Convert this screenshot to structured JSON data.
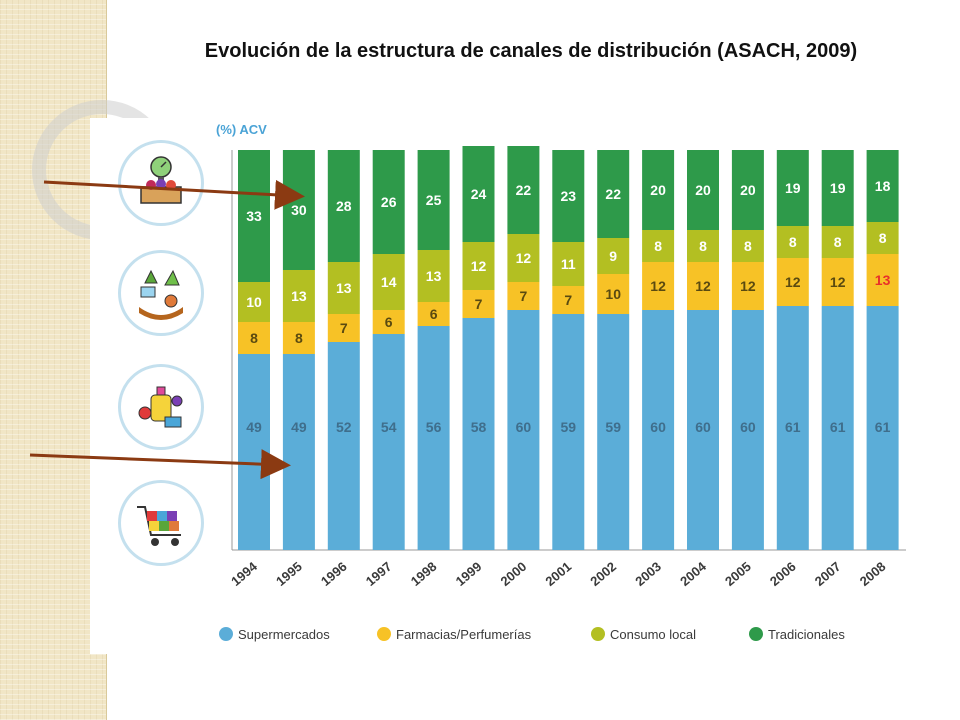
{
  "title": "Evolución de la estructura de canales de distribución (ASACH, 2009)",
  "icons": [
    "scale-market-icon",
    "grocer-icon",
    "perfume-icon",
    "shopping-cart-icon"
  ],
  "chart_data": {
    "type": "bar",
    "stacked": true,
    "unit_label": "(%) ACV",
    "categories": [
      "1994",
      "1995",
      "1996",
      "1997",
      "1998",
      "1999",
      "2000",
      "2001",
      "2002",
      "2003",
      "2004",
      "2005",
      "2006",
      "2007",
      "2008"
    ],
    "series": [
      {
        "name": "Supermercados",
        "color": "#5badd8",
        "values": [
          49,
          49,
          52,
          54,
          56,
          58,
          60,
          59,
          59,
          60,
          60,
          60,
          61,
          61,
          61
        ]
      },
      {
        "name": "Farmacias/Perfumerías",
        "color": "#f7c226",
        "values": [
          8,
          8,
          7,
          6,
          6,
          7,
          7,
          7,
          10,
          12,
          12,
          12,
          12,
          12,
          13
        ]
      },
      {
        "name": "Consumo local",
        "color": "#b3bf22",
        "values": [
          10,
          13,
          13,
          14,
          13,
          12,
          12,
          11,
          9,
          8,
          8,
          8,
          8,
          8,
          8
        ]
      },
      {
        "name": "Tradicionales",
        "color": "#2e9a4a",
        "values": [
          33,
          30,
          28,
          26,
          25,
          24,
          22,
          23,
          22,
          20,
          20,
          20,
          19,
          19,
          18
        ]
      }
    ],
    "highlight": {
      "series": "Farmacias/Perfumerías",
      "category": "2008",
      "color": "#e8302a"
    },
    "ylim": [
      0,
      100
    ],
    "legend_position": "bottom",
    "grid": false
  }
}
